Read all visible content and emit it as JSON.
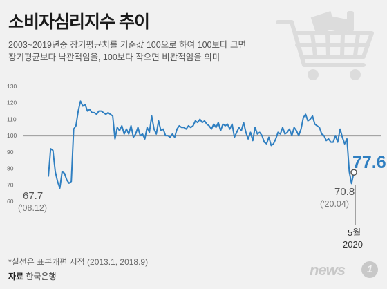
{
  "title": "소비자심리지수 추이",
  "subtitle_line1": "2003~2019년중 장기평균치를 기준값 100으로 하여 100보다 크면",
  "subtitle_line2": "장기평균보다 낙관적임을, 100보다 작으면 비관적임을 의미",
  "footnote": "*실선은 표본개편 시점 (2013.1, 2018.9)",
  "source_label": "자료",
  "source_name": "한국은행",
  "logo_text": "news",
  "logo_badge": "1",
  "icon": "shopping-cart-icon",
  "colors": {
    "line": "#2f7fc1",
    "baseline": "#9a9a9a",
    "grid": "#d6d6d6",
    "cart": "#dcdcdc"
  },
  "chart_data": {
    "type": "line",
    "title": "소비자심리지수 추이",
    "ylim": [
      60,
      130
    ],
    "yticks": [
      "60",
      "70",
      "80",
      "90",
      "100",
      "110",
      "120",
      "130"
    ],
    "baseline": 100,
    "grid": true,
    "values": [
      75,
      92,
      91,
      78,
      72,
      68,
      78,
      77,
      73,
      71,
      72,
      104,
      106,
      115,
      121,
      118,
      119,
      115,
      116,
      114,
      114,
      113,
      115,
      115,
      114,
      113,
      114,
      113,
      112,
      98,
      105,
      103,
      106,
      101,
      104,
      101,
      106,
      99,
      101,
      105,
      100,
      101,
      98,
      105,
      102,
      112,
      104,
      101,
      109,
      103,
      104,
      100,
      100,
      99,
      101,
      99,
      104,
      106,
      105,
      105,
      104,
      106,
      105,
      106,
      109,
      108,
      110,
      108,
      109,
      107,
      106,
      104,
      107,
      105,
      108,
      103,
      107,
      106,
      107,
      104,
      107,
      99,
      102,
      105,
      103,
      108,
      102,
      98,
      102,
      97,
      105,
      101,
      102,
      100,
      96,
      95,
      99,
      94,
      95,
      98,
      102,
      101,
      105,
      101,
      102,
      104,
      100,
      105,
      103,
      100,
      104,
      111,
      113,
      109,
      110,
      112,
      107,
      106,
      105,
      101,
      100,
      97,
      98,
      96,
      96,
      100,
      96,
      104,
      99,
      95,
      98,
      78,
      70.8,
      77.6
    ],
    "min_label": {
      "value": "67.7",
      "date": "('08.12)"
    },
    "low_label": {
      "value": "70.8",
      "date": "('20.04)"
    },
    "last_label": {
      "value": "77.6",
      "month": "5월",
      "year": "2020"
    }
  }
}
